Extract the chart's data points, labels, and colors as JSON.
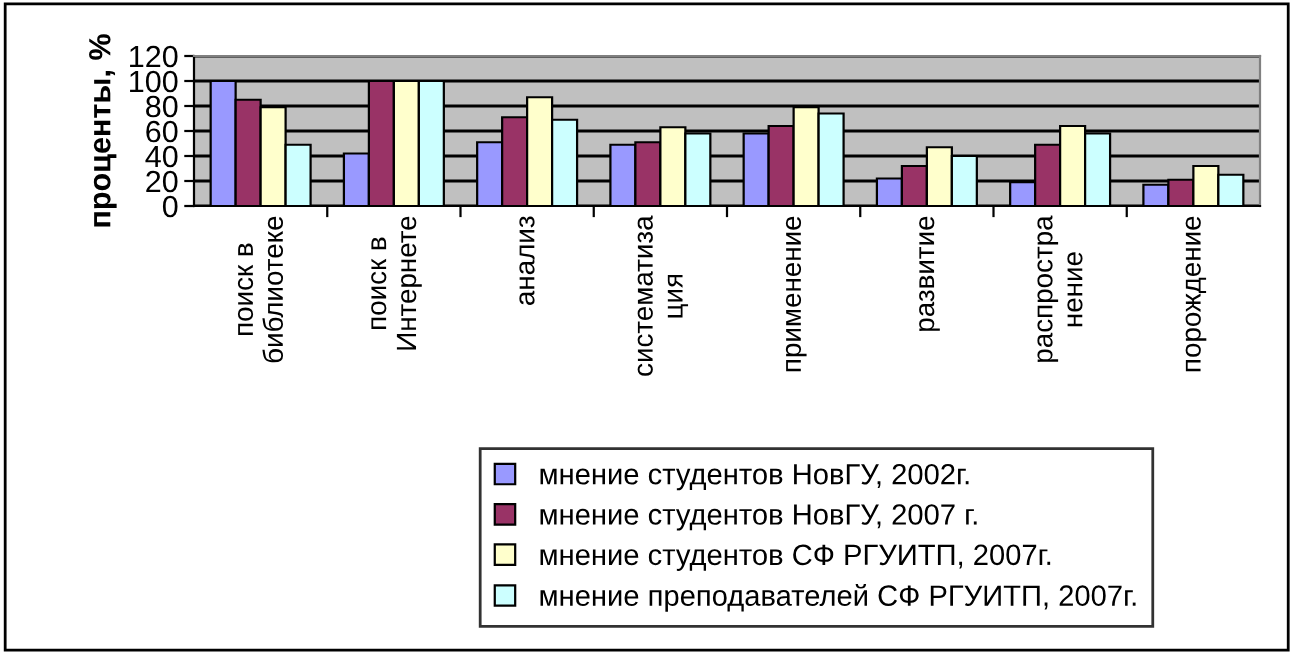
{
  "chart_data": {
    "type": "bar",
    "ylabel": "проценты, %",
    "categories": [
      "поиск в\nбиблиотеке",
      "поиск в\nИнтернете",
      "анализ",
      "систематиза\nция",
      "применение",
      "развитие",
      "распростра\nнение",
      "порождение"
    ],
    "series": [
      {
        "name": "мнение студентов НовГУ, 2002г.",
        "color": "#9999ff",
        "values": [
          100,
          42,
          51,
          49,
          58,
          22,
          19,
          17
        ]
      },
      {
        "name": "мнение студентов НовГУ, 2007 г.",
        "color": "#993366",
        "values": [
          85,
          100,
          71,
          51,
          64,
          32,
          49,
          21
        ]
      },
      {
        "name": "мнение студентов СФ РГУИТП, 2007г.",
        "color": "#ffffcc",
        "values": [
          79,
          100,
          87,
          63,
          79,
          47,
          64,
          32
        ]
      },
      {
        "name": "мнение преподавателей СФ РГУИТП, 2007г.",
        "color": "#ccffff",
        "values": [
          49,
          100,
          69,
          58,
          74,
          40,
          58,
          25
        ]
      }
    ],
    "ylim": [
      0,
      120
    ],
    "yticks": [
      0,
      20,
      40,
      60,
      80,
      100,
      120
    ],
    "grid": "y",
    "legend": "bottom"
  }
}
